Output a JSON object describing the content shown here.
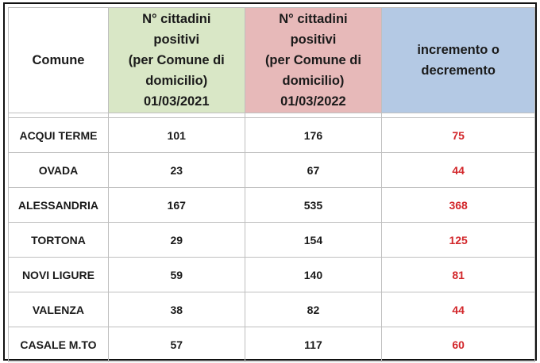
{
  "headers": {
    "comune": "Comune",
    "col2021": [
      "N° cittadini",
      "positivi",
      "(per Comune di",
      "domicilio)",
      "01/03/2021"
    ],
    "col2022": [
      "N° cittadini",
      "positivi",
      "(per Comune di",
      "domicilio)",
      "01/03/2022"
    ],
    "delta": [
      "incremento o",
      "decremento"
    ]
  },
  "rows": [
    {
      "comune": "ACQUI TERME",
      "v2021": "101",
      "v2022": "176",
      "delta": "75"
    },
    {
      "comune": "OVADA",
      "v2021": "23",
      "v2022": "67",
      "delta": "44"
    },
    {
      "comune": "ALESSANDRIA",
      "v2021": "167",
      "v2022": "535",
      "delta": "368"
    },
    {
      "comune": "TORTONA",
      "v2021": "29",
      "v2022": "154",
      "delta": "125"
    },
    {
      "comune": "NOVI LIGURE",
      "v2021": "59",
      "v2022": "140",
      "delta": "81"
    },
    {
      "comune": "VALENZA",
      "v2021": "38",
      "v2022": "82",
      "delta": "44"
    },
    {
      "comune": "CASALE M.TO",
      "v2021": "57",
      "v2022": "117",
      "delta": "60"
    }
  ],
  "colors": {
    "header_2021": "#d9e7c6",
    "header_2022": "#e7b9b9",
    "header_delta": "#b4c9e4",
    "delta_text": "#d2262a"
  }
}
